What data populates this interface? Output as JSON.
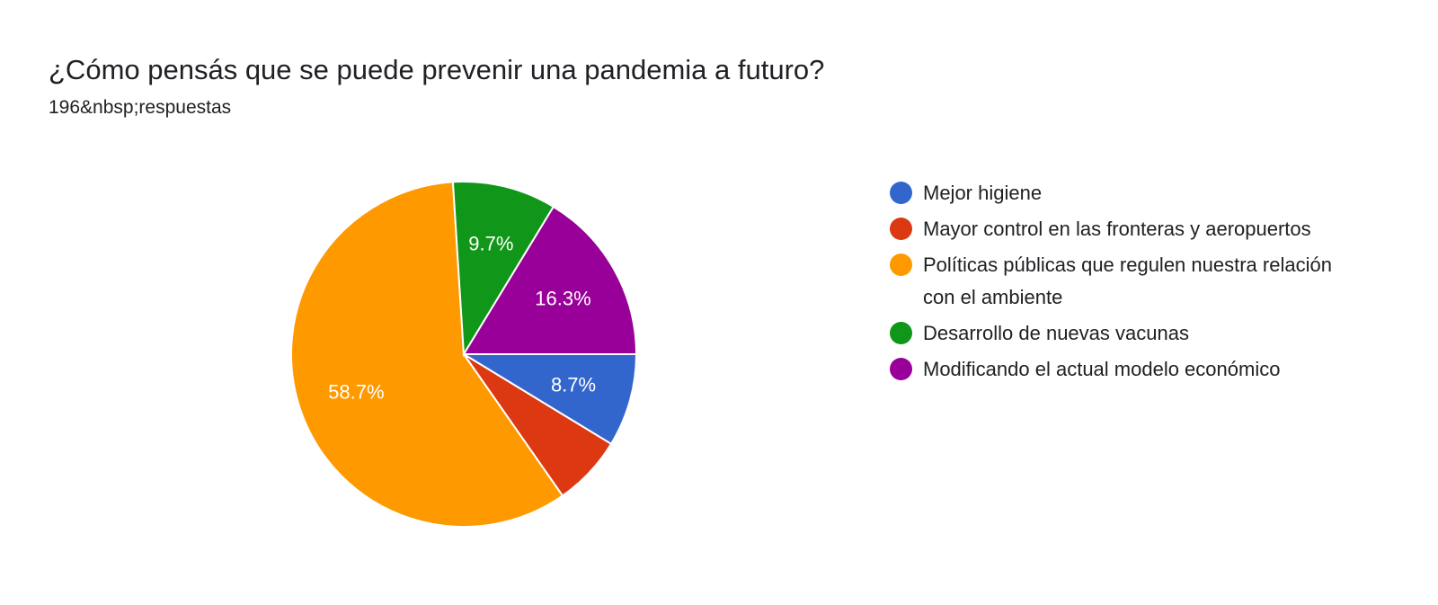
{
  "header": {
    "title": "¿Cómo pensás que se puede prevenir una pandemia a futuro?",
    "subtitle": "196&nbsp;respuestas"
  },
  "chart_data": {
    "type": "pie",
    "title": "¿Cómo pensás que se puede prevenir una pandemia a futuro?",
    "start": "right (3 o'clock), clockwise",
    "slices": [
      {
        "name": "Mejor higiene",
        "value": 8.7,
        "label": "8.7%",
        "color": "#3366cc"
      },
      {
        "name": "Mayor control en las fronteras y aeropuertos",
        "value": 6.6,
        "label": "",
        "color": "#dc3912"
      },
      {
        "name": "Políticas públicas que regulen nuestra relación con el ambiente",
        "value": 58.7,
        "label": "58.7%",
        "color": "#ff9900"
      },
      {
        "name": "Desarrollo de nuevas vacunas",
        "value": 9.7,
        "label": "9.7%",
        "color": "#109618"
      },
      {
        "name": "Modificando el actual modelo económico",
        "value": 16.3,
        "label": "16.3%",
        "color": "#990099"
      }
    ],
    "legend": {
      "position": "right",
      "items": [
        {
          "label": "Mejor higiene",
          "color": "#3366cc"
        },
        {
          "label": "Mayor control en las fronteras y aeropuertos",
          "color": "#dc3912"
        },
        {
          "label": "Políticas públicas que regulen nuestra relación con el ambiente",
          "color": "#ff9900"
        },
        {
          "label": "Desarrollo de nuevas vacunas",
          "color": "#109618"
        },
        {
          "label": "Modificando el actual modelo económico",
          "color": "#990099"
        }
      ]
    }
  }
}
